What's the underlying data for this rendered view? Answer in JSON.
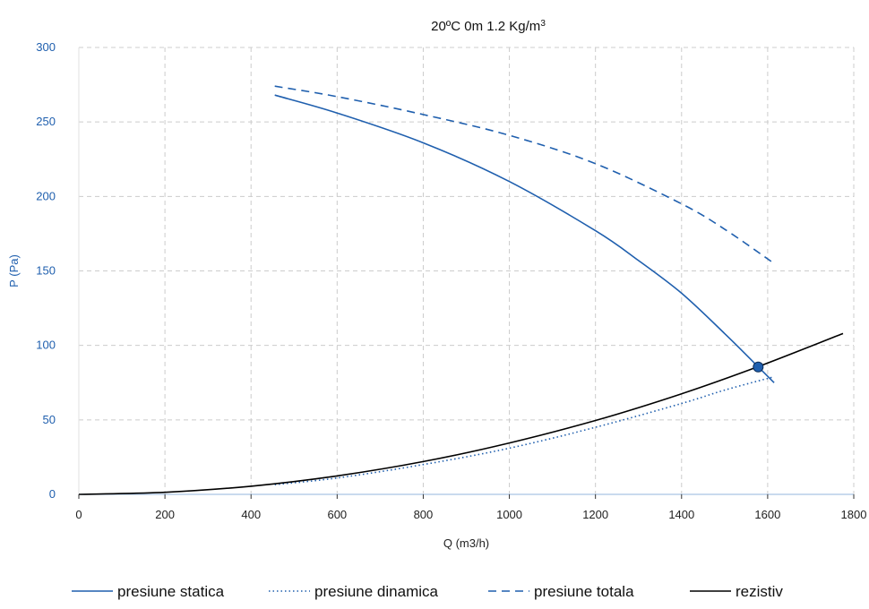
{
  "chart_data": {
    "type": "line",
    "title": "20ºC 0m 1.2 Kg/m",
    "title_sup": "3",
    "xlabel": "Q (m3/h)",
    "ylabel": "P (Pa)",
    "xlim": [
      0,
      1800
    ],
    "ylim": [
      0,
      300
    ],
    "x_ticks": [
      0,
      200,
      400,
      600,
      800,
      1000,
      1200,
      1400,
      1600,
      1800
    ],
    "y_ticks": [
      0,
      50,
      100,
      150,
      200,
      250,
      300
    ],
    "grid": true,
    "legend_position": "bottom",
    "colors": {
      "blue": "#1f5fae",
      "black": "#000000",
      "grid": "#cccccc",
      "axis": "#a9c4e4"
    },
    "series": [
      {
        "name": "presiune statica",
        "style": "solid",
        "color": "#1f5fae",
        "points": [
          [
            455,
            268
          ],
          [
            600,
            256
          ],
          [
            800,
            236
          ],
          [
            1000,
            210
          ],
          [
            1200,
            177
          ],
          [
            1300,
            157
          ],
          [
            1400,
            135
          ],
          [
            1500,
            108
          ],
          [
            1580,
            85
          ],
          [
            1615,
            75
          ]
        ]
      },
      {
        "name": "presiune dinamica",
        "style": "dotted",
        "color": "#1f5fae",
        "points": [
          [
            455,
            6.5
          ],
          [
            600,
            11
          ],
          [
            800,
            20
          ],
          [
            1000,
            31
          ],
          [
            1200,
            45
          ],
          [
            1400,
            61
          ],
          [
            1500,
            70
          ],
          [
            1615,
            79
          ]
        ]
      },
      {
        "name": "presiune totala",
        "style": "dashed",
        "color": "#1f5fae",
        "points": [
          [
            455,
            274
          ],
          [
            600,
            267
          ],
          [
            800,
            255
          ],
          [
            1000,
            241
          ],
          [
            1200,
            222
          ],
          [
            1400,
            195
          ],
          [
            1500,
            178
          ],
          [
            1615,
            155
          ]
        ]
      },
      {
        "name": "rezistiv",
        "style": "solid",
        "color": "#000000",
        "points": [
          [
            0,
            0
          ],
          [
            200,
            1.4
          ],
          [
            400,
            5.5
          ],
          [
            600,
            12.4
          ],
          [
            800,
            22
          ],
          [
            1000,
            34.5
          ],
          [
            1200,
            49.6
          ],
          [
            1400,
            67.5
          ],
          [
            1580,
            86
          ],
          [
            1775,
            108
          ]
        ]
      }
    ],
    "operating_point": {
      "x": 1578,
      "y": 85.5
    }
  }
}
